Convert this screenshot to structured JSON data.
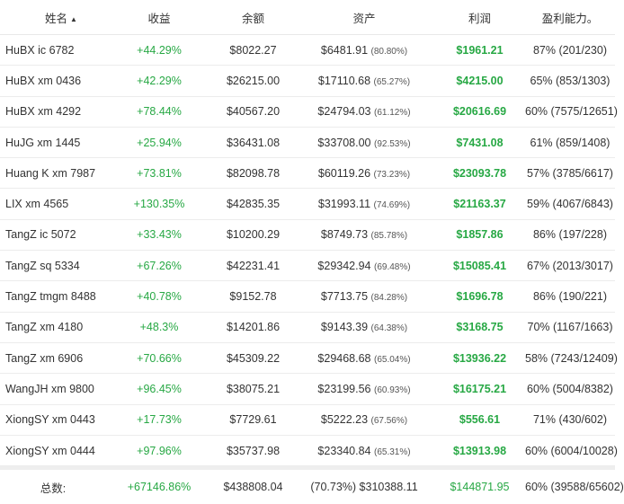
{
  "headers": {
    "name": "姓名",
    "profit_pct": "收益",
    "balance": "余额",
    "assets": "资产",
    "profit": "利润",
    "win_rate": "盈利能力。"
  },
  "rows": [
    {
      "name": "HuBX ic 6782",
      "profit_pct": "+44.29%",
      "balance": "$8022.27",
      "assets": "$6481.91",
      "assets_pct": "(80.80%)",
      "profit": "$1961.21",
      "win_rate": "87% (201/230)"
    },
    {
      "name": "HuBX xm 0436",
      "profit_pct": "+42.29%",
      "balance": "$26215.00",
      "assets": "$17110.68",
      "assets_pct": "(65.27%)",
      "profit": "$4215.00",
      "win_rate": "65% (853/1303)"
    },
    {
      "name": "HuBX xm 4292",
      "profit_pct": "+78.44%",
      "balance": "$40567.20",
      "assets": "$24794.03",
      "assets_pct": "(61.12%)",
      "profit": "$20616.69",
      "win_rate": "60% (7575/12651)"
    },
    {
      "name": "HuJG xm 1445",
      "profit_pct": "+25.94%",
      "balance": "$36431.08",
      "assets": "$33708.00",
      "assets_pct": "(92.53%)",
      "profit": "$7431.08",
      "win_rate": "61% (859/1408)"
    },
    {
      "name": "Huang K xm 7987",
      "profit_pct": "+73.81%",
      "balance": "$82098.78",
      "assets": "$60119.26",
      "assets_pct": "(73.23%)",
      "profit": "$23093.78",
      "win_rate": "57% (3785/6617)"
    },
    {
      "name": "LIX xm 4565",
      "profit_pct": "+130.35%",
      "balance": "$42835.35",
      "assets": "$31993.11",
      "assets_pct": "(74.69%)",
      "profit": "$21163.37",
      "win_rate": "59% (4067/6843)"
    },
    {
      "name": "TangZ ic 5072",
      "profit_pct": "+33.43%",
      "balance": "$10200.29",
      "assets": "$8749.73",
      "assets_pct": "(85.78%)",
      "profit": "$1857.86",
      "win_rate": "86% (197/228)"
    },
    {
      "name": "TangZ sq 5334",
      "profit_pct": "+67.26%",
      "balance": "$42231.41",
      "assets": "$29342.94",
      "assets_pct": "(69.48%)",
      "profit": "$15085.41",
      "win_rate": "67% (2013/3017)"
    },
    {
      "name": "TangZ tmgm 8488",
      "profit_pct": "+40.78%",
      "balance": "$9152.78",
      "assets": "$7713.75",
      "assets_pct": "(84.28%)",
      "profit": "$1696.78",
      "win_rate": "86% (190/221)"
    },
    {
      "name": "TangZ xm 4180",
      "profit_pct": "+48.3%",
      "balance": "$14201.86",
      "assets": "$9143.39",
      "assets_pct": "(64.38%)",
      "profit": "$3168.75",
      "win_rate": "70% (1167/1663)"
    },
    {
      "name": "TangZ xm 6906",
      "profit_pct": "+70.66%",
      "balance": "$45309.22",
      "assets": "$29468.68",
      "assets_pct": "(65.04%)",
      "profit": "$13936.22",
      "win_rate": "58% (7243/12409)"
    },
    {
      "name": "WangJH xm 9800",
      "profit_pct": "+96.45%",
      "balance": "$38075.21",
      "assets": "$23199.56",
      "assets_pct": "(60.93%)",
      "profit": "$16175.21",
      "win_rate": "60% (5004/8382)"
    },
    {
      "name": "XiongSY xm 0443",
      "profit_pct": "+17.73%",
      "balance": "$7729.61",
      "assets": "$5222.23",
      "assets_pct": "(67.56%)",
      "profit": "$556.61",
      "win_rate": "71% (430/602)"
    },
    {
      "name": "XiongSY xm 0444",
      "profit_pct": "+97.96%",
      "balance": "$35737.98",
      "assets": "$23340.84",
      "assets_pct": "(65.31%)",
      "profit": "$13913.98",
      "win_rate": "60% (6004/10028)"
    }
  ],
  "totals": {
    "label": "总数:",
    "profit_pct": "+67146.86%",
    "balance": "$438808.04",
    "assets": "(70.73%) $310388.11",
    "profit": "$144871.95",
    "win_rate": "60% (39588/65602)"
  },
  "colors": {
    "positive": "#27a844"
  }
}
